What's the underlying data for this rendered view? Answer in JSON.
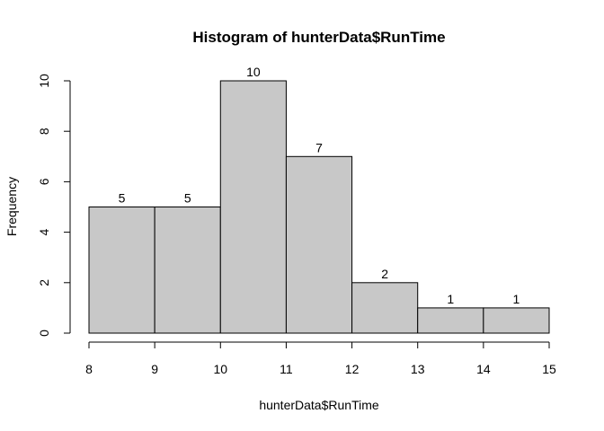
{
  "chart_data": {
    "type": "bar",
    "title": "Histogram of hunterData$RunTime",
    "xlabel": "hunterData$RunTime",
    "ylabel": "Frequency",
    "bins": [
      {
        "x0": 8,
        "x1": 9,
        "count": 5
      },
      {
        "x0": 9,
        "x1": 10,
        "count": 5
      },
      {
        "x0": 10,
        "x1": 11,
        "count": 10
      },
      {
        "x0": 11,
        "x1": 12,
        "count": 7
      },
      {
        "x0": 12,
        "x1": 13,
        "count": 2
      },
      {
        "x0": 13,
        "x1": 14,
        "count": 1
      },
      {
        "x0": 14,
        "x1": 15,
        "count": 1
      }
    ],
    "xlim": [
      8,
      15
    ],
    "ylim": [
      0,
      10
    ],
    "xticks": [
      8,
      9,
      10,
      11,
      12,
      13,
      14,
      15
    ],
    "yticks": [
      0,
      2,
      4,
      6,
      8,
      10
    ],
    "bar_color": "#c8c8c8",
    "grid": false,
    "legend": "none"
  }
}
